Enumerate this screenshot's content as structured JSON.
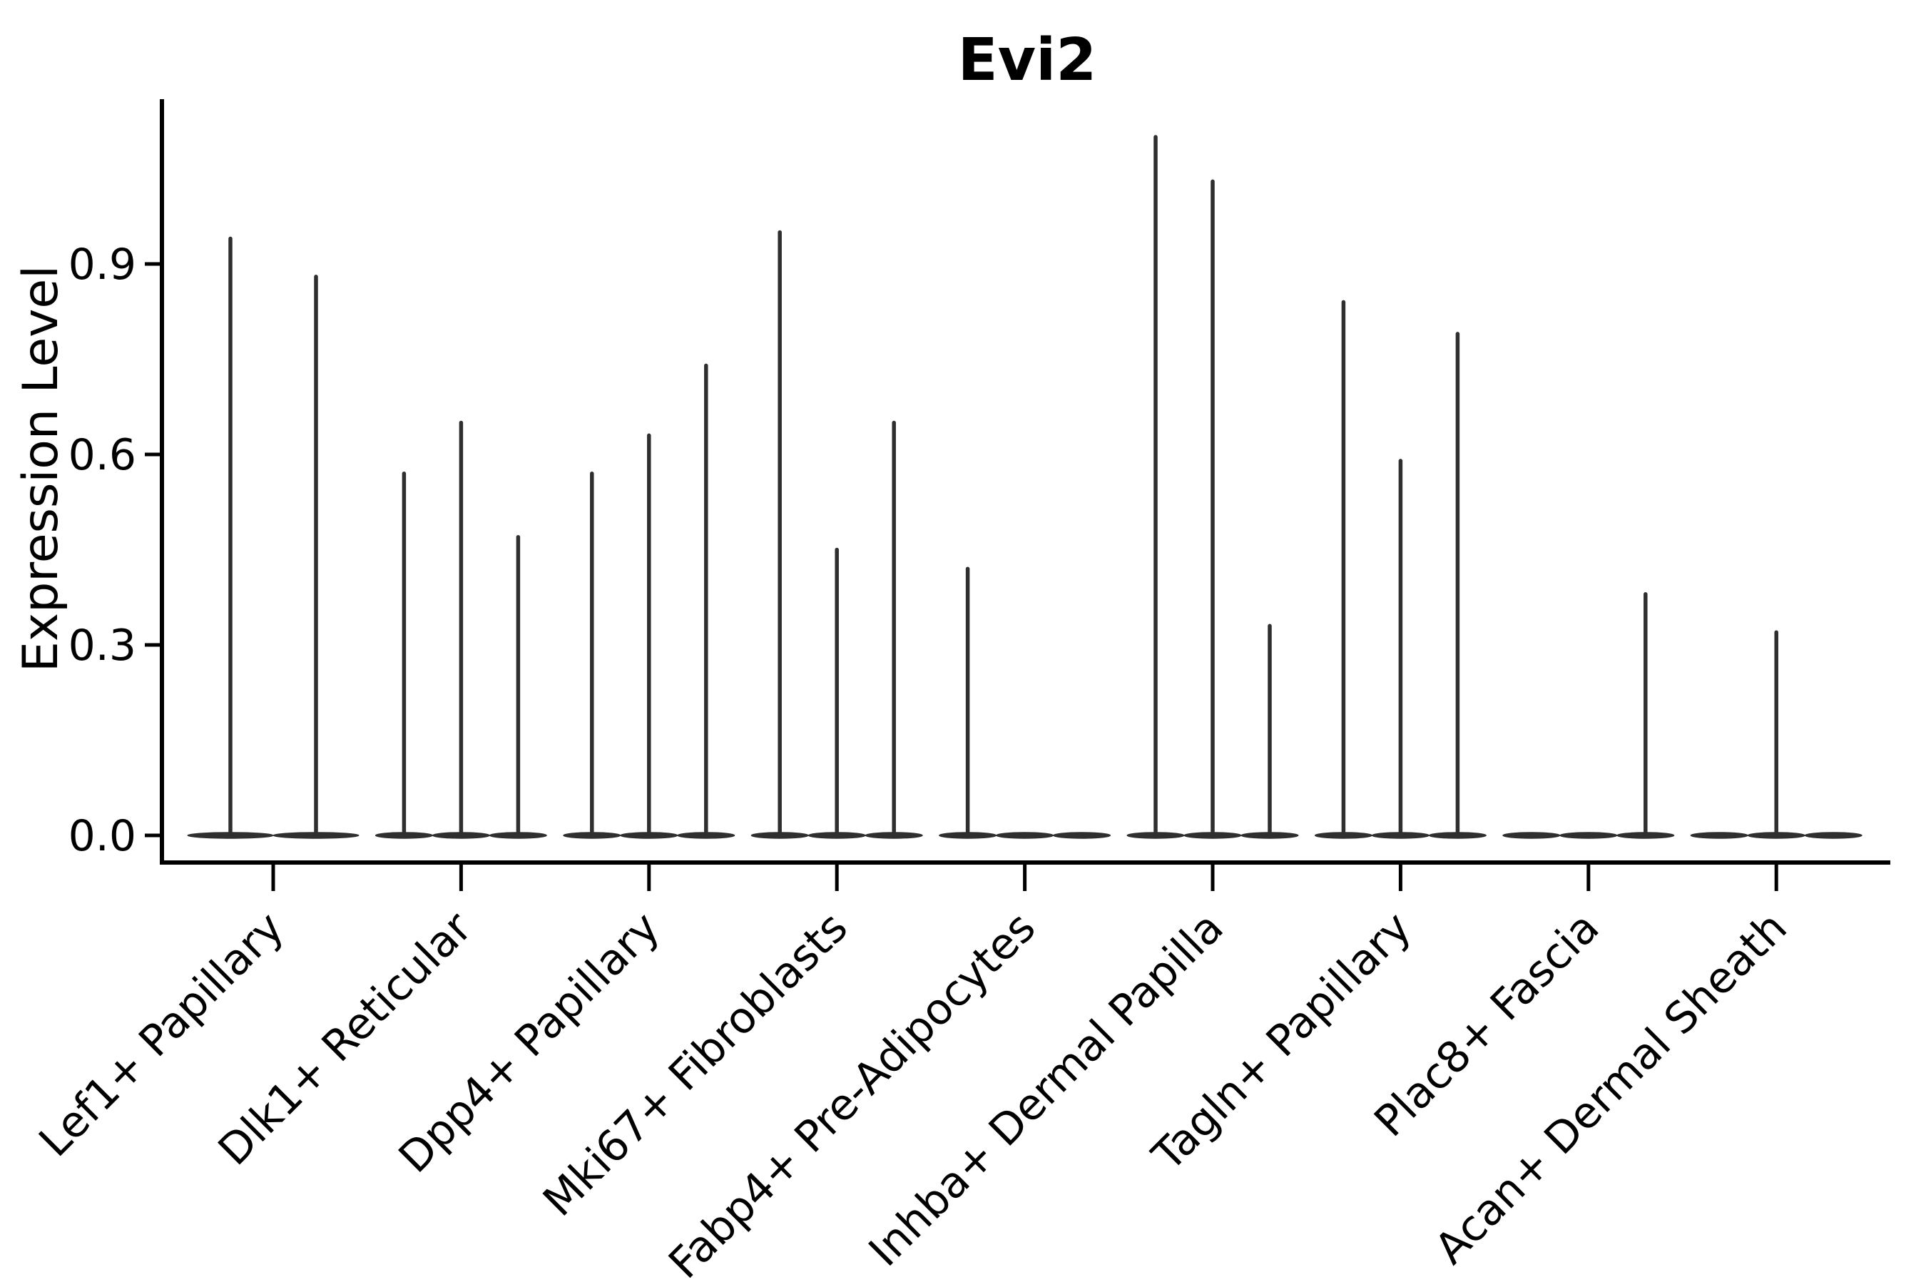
{
  "title": "Evi2",
  "chart_data": {
    "type": "violin",
    "title": "Evi2",
    "xlabel": "",
    "ylabel": "Expression Level",
    "yticks": [
      0.0,
      0.3,
      0.6,
      0.9
    ],
    "ylim": [
      0.0,
      1.16
    ],
    "grid": false,
    "legend": "none",
    "line_color": "#2f2f2f",
    "axis_color": "#000000",
    "text_color": "#000000",
    "background_color": "#ffffff",
    "categories": [
      "Lef1+ Papillary",
      "Dlk1+ Reticular",
      "Dpp4+ Papillary",
      "Mki67+ Fibroblasts",
      "Fabp4+ Pre-Adipocytes",
      "Inhba+ Dermal Papilla",
      "Tagln+ Papillary",
      "Plac8+ Fascia",
      "Acan+ Dermal Sheath"
    ],
    "groups": [
      {
        "category": "Lef1+ Papillary",
        "violins": [
          {
            "offset": -60,
            "halfwidth": 60,
            "max": 0.94
          },
          {
            "offset": 60,
            "halfwidth": 60,
            "max": 0.88
          }
        ]
      },
      {
        "category": "Dlk1+ Reticular",
        "violins": [
          {
            "offset": -80,
            "halfwidth": 40,
            "max": 0.57
          },
          {
            "offset": 0,
            "halfwidth": 40,
            "max": 0.65
          },
          {
            "offset": 80,
            "halfwidth": 40,
            "max": 0.47
          }
        ]
      },
      {
        "category": "Dpp4+ Papillary",
        "violins": [
          {
            "offset": -80,
            "halfwidth": 40,
            "max": 0.57
          },
          {
            "offset": 0,
            "halfwidth": 40,
            "max": 0.63
          },
          {
            "offset": 80,
            "halfwidth": 40,
            "max": 0.74
          }
        ]
      },
      {
        "category": "Mki67+ Fibroblasts",
        "violins": [
          {
            "offset": -80,
            "halfwidth": 40,
            "max": 0.95
          },
          {
            "offset": 0,
            "halfwidth": 40,
            "max": 0.45
          },
          {
            "offset": 80,
            "halfwidth": 40,
            "max": 0.65
          }
        ]
      },
      {
        "category": "Fabp4+ Pre-Adipocytes",
        "violins": [
          {
            "offset": -80,
            "halfwidth": 40,
            "max": 0.42
          },
          {
            "offset": 0,
            "halfwidth": 40,
            "max": 0.0
          },
          {
            "offset": 80,
            "halfwidth": 40,
            "max": 0.0
          }
        ]
      },
      {
        "category": "Inhba+ Dermal Papilla",
        "violins": [
          {
            "offset": -80,
            "halfwidth": 40,
            "max": 1.1
          },
          {
            "offset": 0,
            "halfwidth": 40,
            "max": 1.03
          },
          {
            "offset": 80,
            "halfwidth": 40,
            "max": 0.33
          }
        ]
      },
      {
        "category": "Tagln+ Papillary",
        "violins": [
          {
            "offset": -80,
            "halfwidth": 40,
            "max": 0.84
          },
          {
            "offset": 0,
            "halfwidth": 40,
            "max": 0.59
          },
          {
            "offset": 80,
            "halfwidth": 40,
            "max": 0.79
          }
        ]
      },
      {
        "category": "Plac8+ Fascia",
        "violins": [
          {
            "offset": -80,
            "halfwidth": 40,
            "max": 0.0
          },
          {
            "offset": 0,
            "halfwidth": 40,
            "max": 0.0
          },
          {
            "offset": 80,
            "halfwidth": 40,
            "max": 0.38
          }
        ]
      },
      {
        "category": "Acan+ Dermal Sheath",
        "violins": [
          {
            "offset": -80,
            "halfwidth": 40,
            "max": 0.0
          },
          {
            "offset": 0,
            "halfwidth": 40,
            "max": 0.32
          },
          {
            "offset": 80,
            "halfwidth": 40,
            "max": 0.0
          }
        ]
      }
    ]
  }
}
